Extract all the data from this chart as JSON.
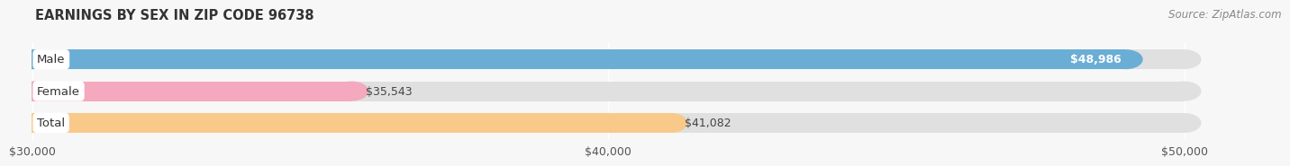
{
  "title": "EARNINGS BY SEX IN ZIP CODE 96738",
  "source": "Source: ZipAtlas.com",
  "categories": [
    "Male",
    "Female",
    "Total"
  ],
  "values": [
    48986,
    35543,
    41082
  ],
  "value_labels": [
    "$48,986",
    "$35,543",
    "$41,082"
  ],
  "bar_colors": [
    "#6aaed6",
    "#f4a9be",
    "#f9c98a"
  ],
  "track_color": "#e0e0e0",
  "xmin": 30000,
  "xmax": 50000,
  "xticks": [
    30000,
    40000,
    50000
  ],
  "xtick_labels": [
    "$30,000",
    "$40,000",
    "$50,000"
  ],
  "background_color": "#f7f7f7",
  "title_fontsize": 10.5,
  "source_fontsize": 8.5,
  "label_fontsize": 9.5,
  "value_fontsize": 9,
  "bar_height": 0.62,
  "label_box_color": "#ffffff",
  "value_label_inside_color": "white",
  "value_label_outside_color": "#444444"
}
